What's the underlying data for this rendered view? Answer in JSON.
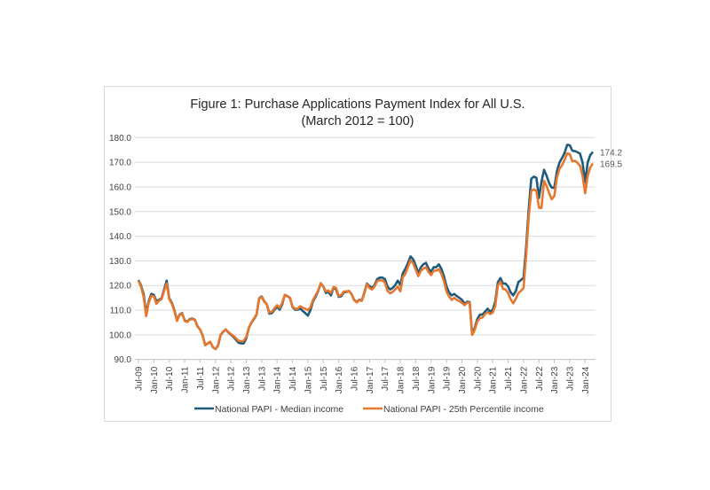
{
  "chart_data": {
    "type": "line",
    "title": "Figure 1: Purchase Applications Payment Index for All U.S.",
    "subtitle": "(March 2012 = 100)",
    "xlabel": "",
    "ylabel": "",
    "x_start": "Jul-09",
    "x_end": "Apr-24",
    "x_frequency": "monthly",
    "x_tick_labels": [
      "Jul-09",
      "Jan-10",
      "Jul-10",
      "Jan-11",
      "Jul-11",
      "Jan-12",
      "Jul-12",
      "Jan-13",
      "Jul-13",
      "Jan-14",
      "Jul-14",
      "Jan-15",
      "Jul-15",
      "Jan-16",
      "Jul-16",
      "Jan-17",
      "Jul-17",
      "Jan-18",
      "Jul-18",
      "Jan-19",
      "Jul-19",
      "Jan-20",
      "Jul-20",
      "Jan-21",
      "Jul-21",
      "Jan-22",
      "Jul-22",
      "Jan-23",
      "Jul-23",
      "Jan-24"
    ],
    "y_tick_labels": [
      "90.0",
      "100.0",
      "110.0",
      "120.0",
      "130.0",
      "140.0",
      "150.0",
      "160.0",
      "170.0",
      "180.0"
    ],
    "ylim": [
      90,
      180
    ],
    "grid": "horizontal",
    "legend_position": "bottom",
    "series": [
      {
        "name": "National PAPI - Median income",
        "color": "#1f5b7a",
        "end_label": "174.2",
        "values": [
          122.2,
          120,
          116.6,
          108.8,
          113.6,
          116.6,
          116.2,
          113.6,
          114.2,
          114.8,
          118.4,
          122,
          114.8,
          113,
          110,
          105.8,
          108.2,
          108.8,
          105.8,
          105.4,
          106.4,
          106.6,
          106.1,
          103.4,
          102.2,
          99.8,
          95.8,
          96.5,
          97,
          95,
          94.2,
          95.6,
          100,
          101.2,
          102.2,
          101,
          100.1,
          99.2,
          98,
          96.8,
          96.5,
          96.5,
          98.6,
          102.8,
          104.9,
          106.4,
          108.2,
          114.8,
          115.6,
          113.6,
          112.4,
          108.6,
          108.8,
          110.2,
          111.4,
          110.2,
          112.4,
          116.2,
          115.7,
          115,
          111.2,
          110.2,
          110.2,
          110.6,
          109.7,
          108.8,
          107.8,
          110,
          113.6,
          115.4,
          117.8,
          120.8,
          119.6,
          117,
          117.4,
          116,
          119.2,
          118.4,
          115.4,
          115.7,
          117.2,
          117.4,
          117.8,
          116.6,
          114.2,
          113.3,
          114.2,
          113.9,
          117.2,
          120.8,
          119.8,
          119,
          120.2,
          122.6,
          123.2,
          123.2,
          122.6,
          119.6,
          118.4,
          119,
          120.2,
          122,
          120.2,
          125,
          126.8,
          129.2,
          131.8,
          130.6,
          128.2,
          125,
          127.4,
          128.6,
          129.2,
          126.8,
          125.6,
          127.4,
          127.4,
          128.6,
          126.8,
          123.8,
          119.6,
          117.2,
          116,
          116.6,
          115.7,
          115,
          114.2,
          112.6,
          113.4,
          113.3,
          100.1,
          102.8,
          106.4,
          108.2,
          108.2,
          109.4,
          110.6,
          109.4,
          110.2,
          113.6,
          121.4,
          123,
          120.8,
          120.8,
          119.6,
          117.2,
          116,
          117.8,
          121.4,
          122.2,
          123.2,
          135.2,
          150.8,
          163.3,
          164.2,
          163.7,
          155.5,
          162.1,
          166.9,
          164.5,
          161.5,
          159.7,
          159.7,
          166.3,
          169.9,
          171.7,
          173.8,
          177.1,
          176.9,
          174.7,
          174.5,
          174.1,
          173.5,
          169.9,
          161.8,
          169.9,
          172.9,
          174.2
        ]
      },
      {
        "name": "National PAPI - 25th Percentile income",
        "color": "#e8772e",
        "end_label": "169.5",
        "values": [
          122,
          119.5,
          115.5,
          107.6,
          113,
          115.8,
          115.6,
          112.6,
          113.8,
          114.4,
          117.8,
          120.8,
          114.4,
          112.6,
          109.6,
          105.6,
          108,
          108.6,
          105.6,
          105.2,
          106.2,
          106.4,
          106,
          103.4,
          102.2,
          99.8,
          95.8,
          96.6,
          97.2,
          95,
          94.2,
          95.8,
          100,
          101.4,
          102.2,
          101.2,
          100.3,
          99.6,
          98.6,
          97.6,
          97.4,
          97.6,
          99.2,
          103,
          105,
          106.6,
          108.4,
          114.6,
          115.4,
          113.4,
          112.4,
          109,
          109.4,
          110.8,
          112,
          111,
          113,
          116.2,
          115.6,
          115,
          111.4,
          110.6,
          110.6,
          111.6,
          111,
          110.6,
          110,
          111.2,
          114.2,
          116,
          118,
          121,
          119.6,
          117.6,
          118,
          117,
          119.4,
          119,
          115.8,
          116.2,
          117.6,
          117.6,
          117.8,
          116.6,
          114,
          113.2,
          114,
          113.8,
          116.8,
          120.6,
          119,
          118.4,
          119.6,
          121.8,
          122.2,
          122,
          121.2,
          117.8,
          116.8,
          117.4,
          118.4,
          119.6,
          117.6,
          123.4,
          124.8,
          127.6,
          130.2,
          129,
          126.4,
          123.8,
          126,
          126.8,
          127.4,
          125.4,
          124.2,
          126,
          126,
          126.6,
          124.8,
          121.8,
          117.6,
          115.6,
          114.2,
          115,
          114.2,
          113.6,
          113,
          112,
          113,
          113,
          100,
          102,
          105.4,
          106.8,
          107,
          108.4,
          109.2,
          108.4,
          109,
          111.8,
          120,
          121.6,
          118.6,
          118.4,
          117,
          114.4,
          112.8,
          114.6,
          117,
          117.8,
          119,
          132,
          147.6,
          158.4,
          159,
          158.4,
          151.6,
          151.4,
          162.5,
          160.4,
          157.4,
          155,
          156.4,
          163.8,
          167.4,
          168.8,
          171,
          173.6,
          173.3,
          170.4,
          170.6,
          169.8,
          168.6,
          164.6,
          157.4,
          164.5,
          168,
          169.5
        ]
      }
    ]
  }
}
